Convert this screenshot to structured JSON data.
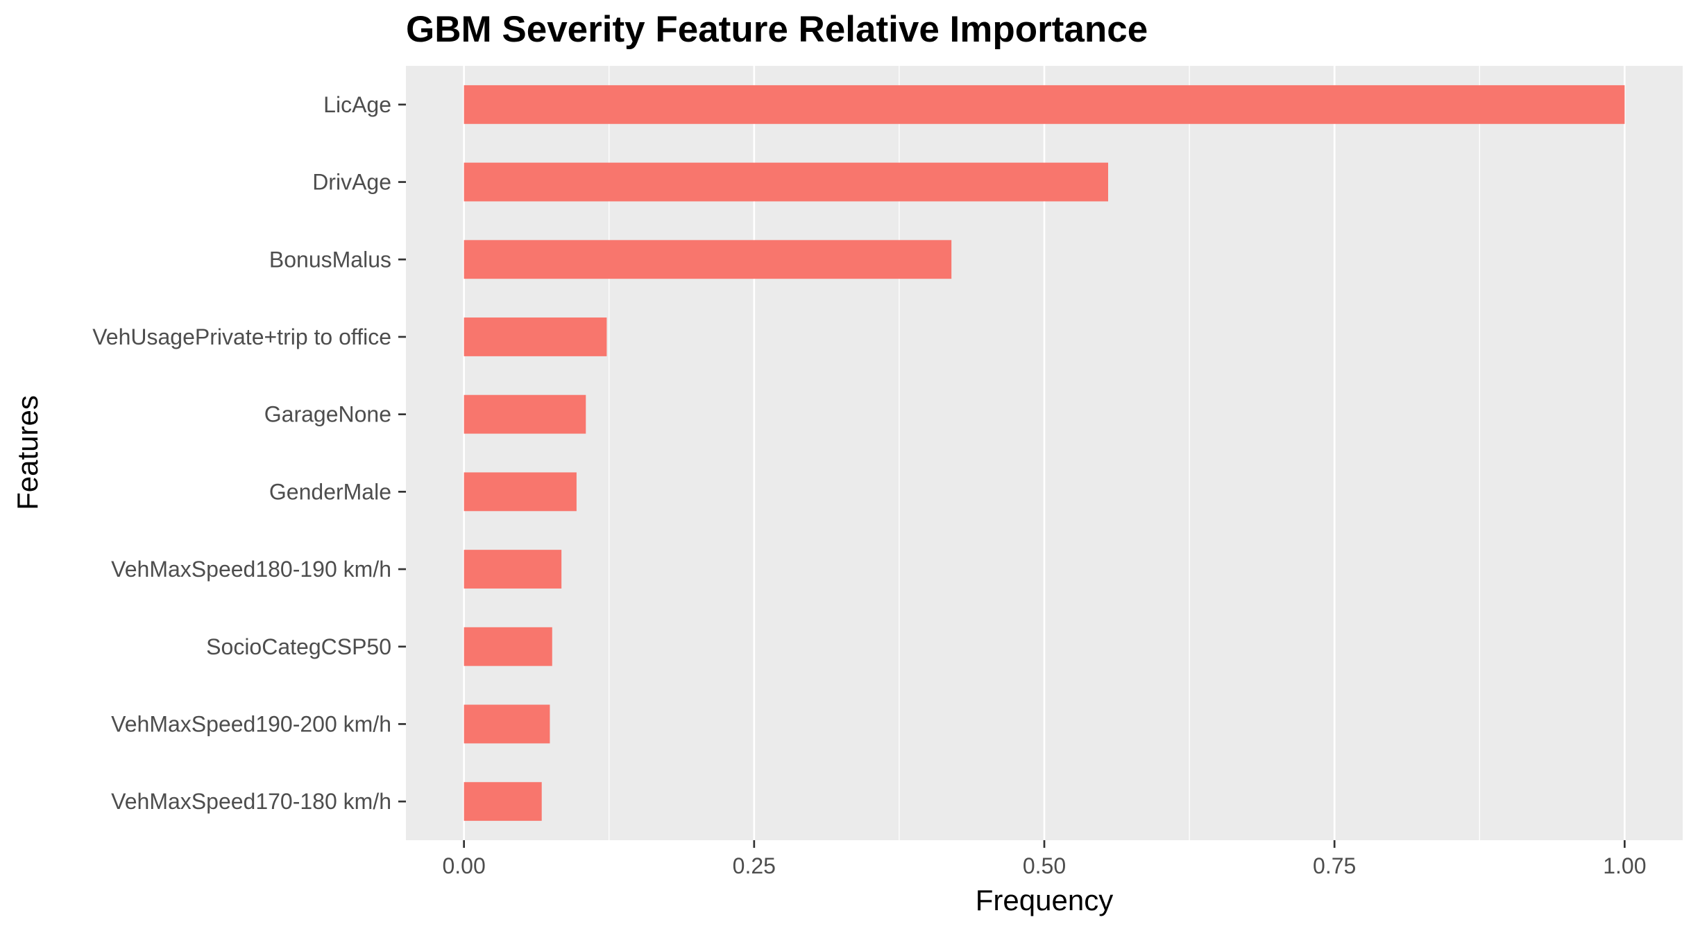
{
  "chart_data": {
    "type": "bar",
    "orientation": "horizontal",
    "title": "GBM Severity Feature Relative Importance",
    "xlabel": "Frequency",
    "ylabel": "Features",
    "categories": [
      "LicAge",
      "DrivAge",
      "BonusMalus",
      "VehUsagePrivate+trip to office",
      "GarageNone",
      "GenderMale",
      "VehMaxSpeed180-190 km/h",
      "SocioCategCSP50",
      "VehMaxSpeed190-200 km/h",
      "VehMaxSpeed170-180 km/h"
    ],
    "values": [
      1.0,
      0.555,
      0.42,
      0.123,
      0.105,
      0.097,
      0.084,
      0.076,
      0.074,
      0.067
    ],
    "xlim": [
      -0.05,
      1.05
    ],
    "xticks": [
      0,
      0.25,
      0.5,
      0.75,
      1
    ],
    "xtick_labels": [
      "0.00",
      "0.25",
      "0.50",
      "0.75",
      "1.00"
    ],
    "grid": true,
    "legend": "none",
    "colors": {
      "bar": "#f8766d",
      "panel": "#ebebeb",
      "grid": "#ffffff",
      "tick_text": "#4d4d4d",
      "tick_mark": "#333333"
    }
  }
}
